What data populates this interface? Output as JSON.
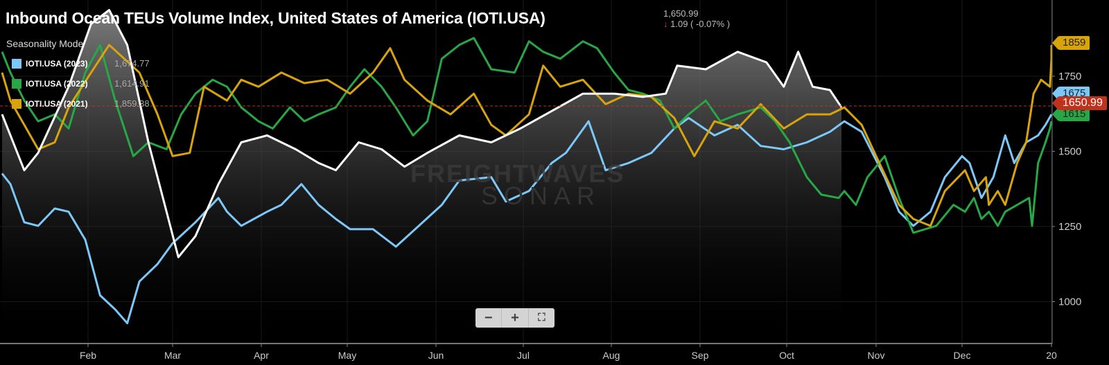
{
  "chart_data": {
    "type": "line",
    "title": "Inbound Ocean TEUs Volume Index, United States of America (IOTI.USA)",
    "quote": {
      "last": "1,650.99",
      "change": "1.09 ( -0.07% )",
      "direction": "down"
    },
    "mode_label": "Seasonality Mode",
    "x_unit": "day of year",
    "x_ticks": [
      {
        "label": "Feb",
        "day": 31
      },
      {
        "label": "Mar",
        "day": 59
      },
      {
        "label": "Apr",
        "day": 90
      },
      {
        "label": "May",
        "day": 120
      },
      {
        "label": "Jun",
        "day": 151
      },
      {
        "label": "Jul",
        "day": 181
      },
      {
        "label": "Aug",
        "day": 212
      },
      {
        "label": "Sep",
        "day": 243
      },
      {
        "label": "Oct",
        "day": 273
      },
      {
        "label": "Nov",
        "day": 304
      },
      {
        "label": "Dec",
        "day": 334
      },
      {
        "label": "20",
        "day": 394
      }
    ],
    "y_ticks": [
      1000,
      1250,
      1500,
      1750
    ],
    "ylim": [
      900,
      1980
    ],
    "reference_line": {
      "value": 1650.99,
      "label": "1650.99",
      "color": "#c0321c"
    },
    "series": [
      {
        "name": "IOTI.USA",
        "color": "#ffffff",
        "fill": true,
        "points": [
          [
            0,
            1623
          ],
          [
            8,
            1437
          ],
          [
            13,
            1495
          ],
          [
            24,
            1715
          ],
          [
            32,
            1924
          ],
          [
            38,
            1970
          ],
          [
            44,
            1854
          ],
          [
            51,
            1530
          ],
          [
            57,
            1299
          ],
          [
            61,
            1148
          ],
          [
            67,
            1218
          ],
          [
            75,
            1391
          ],
          [
            83,
            1530
          ],
          [
            92,
            1553
          ],
          [
            102,
            1507
          ],
          [
            110,
            1461
          ],
          [
            116,
            1437
          ],
          [
            124,
            1530
          ],
          [
            132,
            1507
          ],
          [
            140,
            1449
          ],
          [
            148,
            1495
          ],
          [
            159,
            1553
          ],
          [
            170,
            1530
          ],
          [
            180,
            1576
          ],
          [
            191,
            1634
          ],
          [
            202,
            1692
          ],
          [
            213,
            1692
          ],
          [
            223,
            1681
          ],
          [
            231,
            1692
          ],
          [
            235,
            1785
          ],
          [
            245,
            1773
          ],
          [
            256,
            1831
          ],
          [
            266,
            1796
          ],
          [
            272,
            1715
          ],
          [
            277,
            1831
          ],
          [
            282,
            1715
          ],
          [
            288,
            1704
          ],
          [
            292,
            1646
          ]
        ]
      },
      {
        "name": "IOTI.USA (2023)",
        "color": "#7cc8f8",
        "legend_value": "1,674.77",
        "badge": "1675",
        "points": [
          [
            0,
            1426
          ],
          [
            3,
            1391
          ],
          [
            8,
            1264
          ],
          [
            13,
            1252
          ],
          [
            19,
            1310
          ],
          [
            24,
            1299
          ],
          [
            30,
            1206
          ],
          [
            35,
            1021
          ],
          [
            40,
            974
          ],
          [
            44,
            928
          ],
          [
            48,
            1067
          ],
          [
            54,
            1125
          ],
          [
            59,
            1194
          ],
          [
            67,
            1264
          ],
          [
            75,
            1345
          ],
          [
            78,
            1299
          ],
          [
            83,
            1252
          ],
          [
            92,
            1299
          ],
          [
            97,
            1322
          ],
          [
            104,
            1391
          ],
          [
            110,
            1322
          ],
          [
            116,
            1275
          ],
          [
            121,
            1241
          ],
          [
            129,
            1241
          ],
          [
            137,
            1183
          ],
          [
            145,
            1252
          ],
          [
            153,
            1322
          ],
          [
            159,
            1403
          ],
          [
            170,
            1414
          ],
          [
            175,
            1333
          ],
          [
            183,
            1368
          ],
          [
            191,
            1461
          ],
          [
            196,
            1495
          ],
          [
            204,
            1600
          ],
          [
            210,
            1437
          ],
          [
            218,
            1461
          ],
          [
            226,
            1495
          ],
          [
            234,
            1576
          ],
          [
            239,
            1611
          ],
          [
            248,
            1553
          ],
          [
            256,
            1588
          ],
          [
            264,
            1518
          ],
          [
            272,
            1507
          ],
          [
            280,
            1530
          ],
          [
            288,
            1565
          ],
          [
            293,
            1600
          ],
          [
            299,
            1565
          ],
          [
            307,
            1414
          ],
          [
            312,
            1299
          ],
          [
            317,
            1252
          ],
          [
            323,
            1299
          ],
          [
            328,
            1414
          ],
          [
            334,
            1484
          ],
          [
            339,
            1461
          ],
          [
            347,
            1345
          ],
          [
            355,
            1414
          ],
          [
            363,
            1553
          ],
          [
            369,
            1461
          ],
          [
            377,
            1530
          ],
          [
            385,
            1553
          ],
          [
            390,
            1588
          ],
          [
            395,
            1623
          ]
        ]
      },
      {
        "name": "IOTI.USA (2022)",
        "color": "#27a745",
        "legend_value": "1,614.91",
        "badge": "1615",
        "points": [
          [
            0,
            1831
          ],
          [
            3,
            1762
          ],
          [
            8,
            1669
          ],
          [
            13,
            1600
          ],
          [
            19,
            1623
          ],
          [
            24,
            1576
          ],
          [
            30,
            1762
          ],
          [
            35,
            1854
          ],
          [
            40,
            1669
          ],
          [
            46,
            1484
          ],
          [
            51,
            1530
          ],
          [
            57,
            1507
          ],
          [
            62,
            1623
          ],
          [
            67,
            1692
          ],
          [
            73,
            1738
          ],
          [
            78,
            1715
          ],
          [
            83,
            1646
          ],
          [
            89,
            1600
          ],
          [
            94,
            1576
          ],
          [
            100,
            1646
          ],
          [
            105,
            1600
          ],
          [
            110,
            1623
          ],
          [
            116,
            1646
          ],
          [
            121,
            1715
          ],
          [
            126,
            1773
          ],
          [
            132,
            1715
          ],
          [
            137,
            1646
          ],
          [
            143,
            1553
          ],
          [
            148,
            1600
          ],
          [
            153,
            1808
          ],
          [
            159,
            1854
          ],
          [
            164,
            1877
          ],
          [
            170,
            1773
          ],
          [
            178,
            1762
          ],
          [
            183,
            1866
          ],
          [
            188,
            1831
          ],
          [
            194,
            1808
          ],
          [
            202,
            1866
          ],
          [
            207,
            1843
          ],
          [
            213,
            1762
          ],
          [
            218,
            1704
          ],
          [
            223,
            1692
          ],
          [
            229,
            1669
          ],
          [
            234,
            1576
          ],
          [
            239,
            1623
          ],
          [
            245,
            1669
          ],
          [
            250,
            1600
          ],
          [
            256,
            1623
          ],
          [
            264,
            1646
          ],
          [
            269,
            1600
          ],
          [
            274,
            1530
          ],
          [
            280,
            1414
          ],
          [
            285,
            1356
          ],
          [
            291,
            1345
          ],
          [
            293,
            1368
          ],
          [
            297,
            1322
          ],
          [
            301,
            1414
          ],
          [
            307,
            1484
          ],
          [
            312,
            1345
          ],
          [
            317,
            1229
          ],
          [
            325,
            1252
          ],
          [
            331,
            1322
          ],
          [
            336,
            1299
          ],
          [
            342,
            1345
          ],
          [
            347,
            1275
          ],
          [
            352,
            1299
          ],
          [
            358,
            1252
          ],
          [
            363,
            1299
          ],
          [
            371,
            1322
          ],
          [
            379,
            1345
          ],
          [
            381,
            1252
          ],
          [
            385,
            1461
          ],
          [
            390,
            1530
          ],
          [
            393,
            1576
          ],
          [
            395,
            1600
          ]
        ]
      },
      {
        "name": "IOTI.USA (2021)",
        "color": "#d9a40b",
        "legend_value": "1,859.38",
        "badge": "1859",
        "points": [
          [
            0,
            1762
          ],
          [
            3,
            1669
          ],
          [
            8,
            1588
          ],
          [
            13,
            1507
          ],
          [
            19,
            1530
          ],
          [
            24,
            1646
          ],
          [
            32,
            1762
          ],
          [
            38,
            1854
          ],
          [
            43,
            1808
          ],
          [
            48,
            1762
          ],
          [
            54,
            1623
          ],
          [
            59,
            1484
          ],
          [
            65,
            1495
          ],
          [
            70,
            1715
          ],
          [
            78,
            1669
          ],
          [
            83,
            1738
          ],
          [
            89,
            1715
          ],
          [
            97,
            1762
          ],
          [
            105,
            1727
          ],
          [
            113,
            1738
          ],
          [
            121,
            1692
          ],
          [
            129,
            1762
          ],
          [
            135,
            1843
          ],
          [
            140,
            1738
          ],
          [
            148,
            1669
          ],
          [
            156,
            1623
          ],
          [
            164,
            1692
          ],
          [
            170,
            1588
          ],
          [
            175,
            1553
          ],
          [
            183,
            1623
          ],
          [
            188,
            1785
          ],
          [
            194,
            1715
          ],
          [
            202,
            1738
          ],
          [
            210,
            1657
          ],
          [
            218,
            1692
          ],
          [
            226,
            1681
          ],
          [
            234,
            1611
          ],
          [
            241,
            1484
          ],
          [
            248,
            1600
          ],
          [
            256,
            1576
          ],
          [
            264,
            1657
          ],
          [
            272,
            1576
          ],
          [
            280,
            1623
          ],
          [
            288,
            1623
          ],
          [
            293,
            1646
          ],
          [
            299,
            1588
          ],
          [
            304,
            1484
          ],
          [
            312,
            1322
          ],
          [
            317,
            1275
          ],
          [
            323,
            1252
          ],
          [
            328,
            1368
          ],
          [
            336,
            1437
          ],
          [
            342,
            1368
          ],
          [
            350,
            1414
          ],
          [
            352,
            1322
          ],
          [
            358,
            1368
          ],
          [
            363,
            1322
          ],
          [
            371,
            1461
          ],
          [
            377,
            1530
          ],
          [
            382,
            1692
          ],
          [
            387,
            1738
          ],
          [
            393,
            1715
          ],
          [
            395,
            1808
          ],
          [
            398,
            1854
          ]
        ]
      }
    ],
    "watermark": "FREIGHTWAVES SONAR",
    "zoom_controls": {
      "minus": "−",
      "plus": "+",
      "fullscreen": "⛶"
    }
  }
}
